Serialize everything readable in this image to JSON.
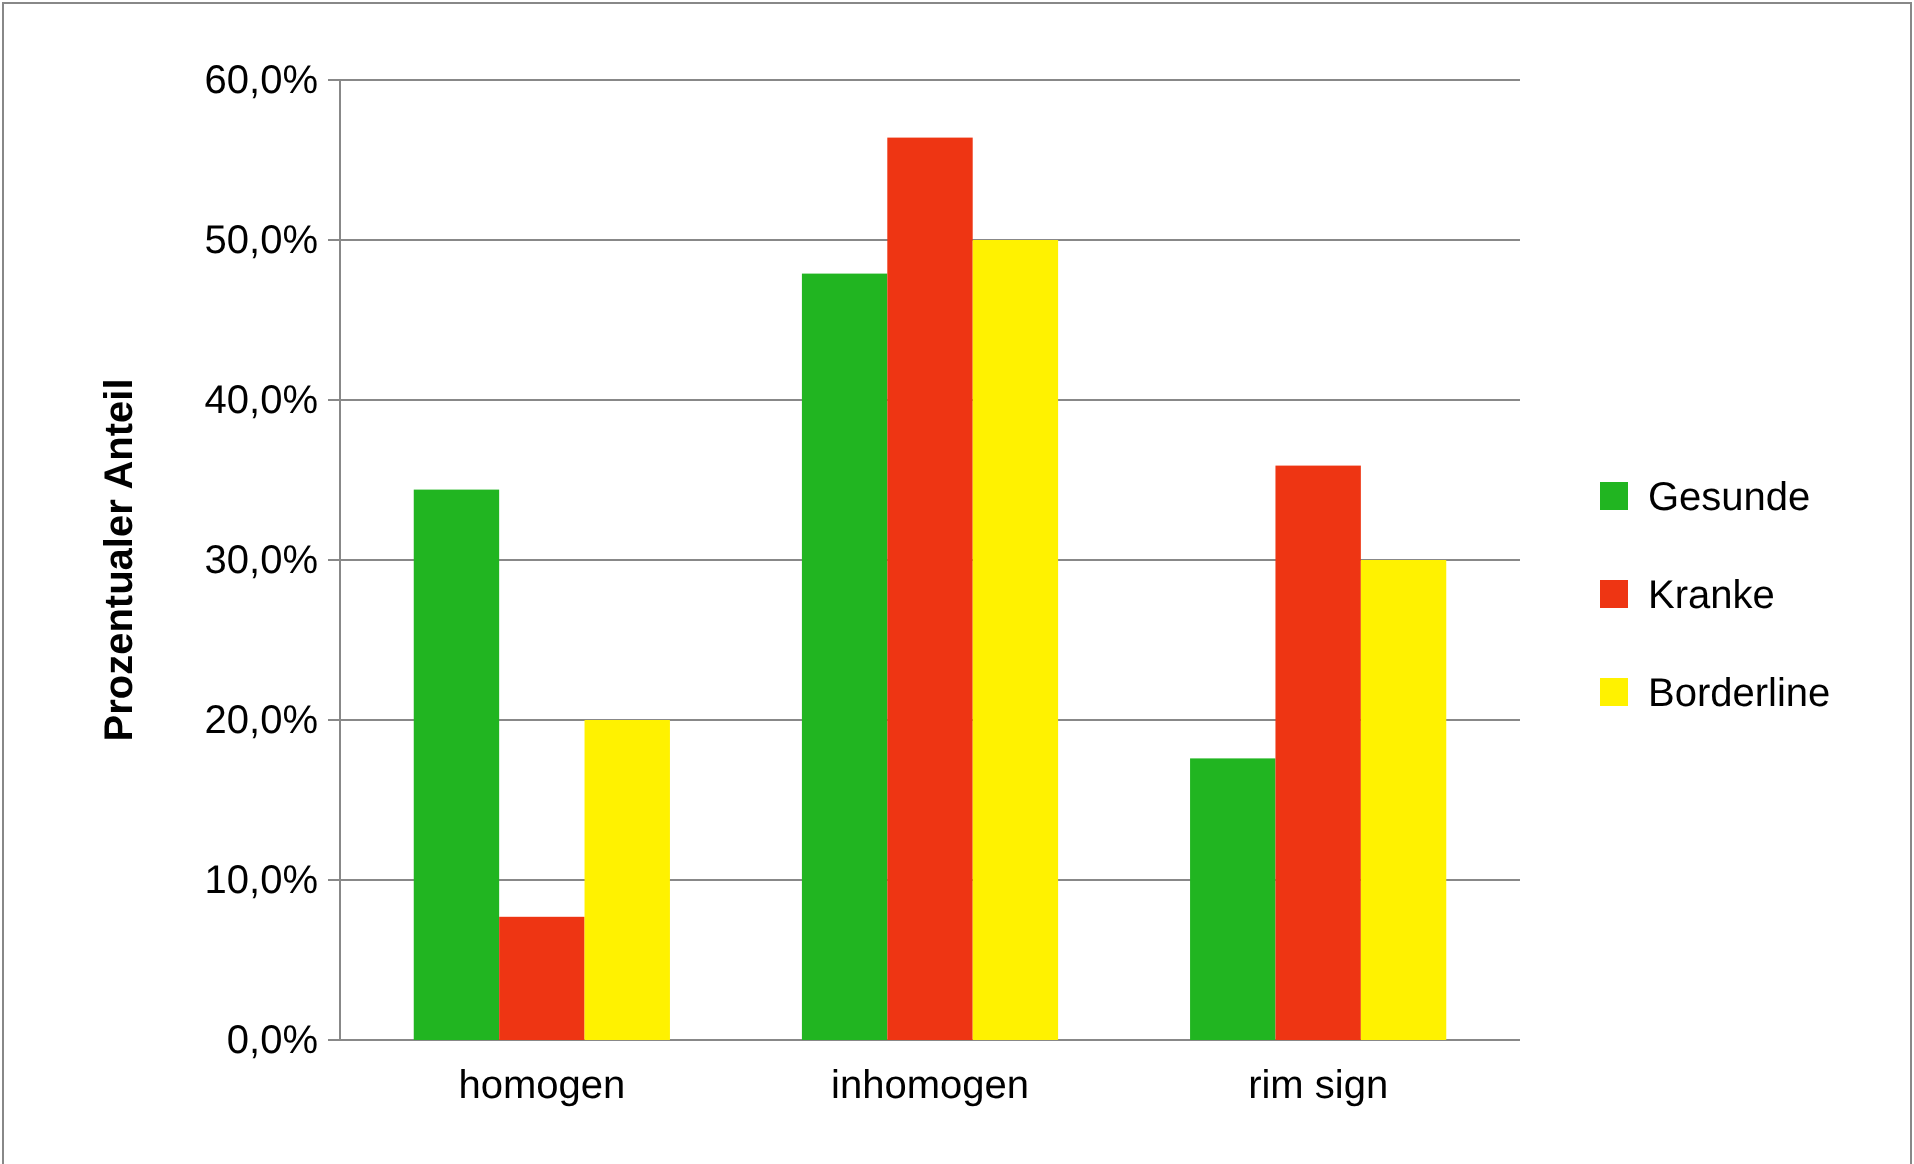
{
  "chart_data": {
    "type": "bar",
    "ylabel": "Prozentualer Anteil",
    "categories": [
      "homogen",
      "inhomogen",
      "rim sign"
    ],
    "series": [
      {
        "name": "Gesunde",
        "color": "#21b521",
        "values": [
          34.4,
          47.9,
          17.6
        ]
      },
      {
        "name": "Kranke",
        "color": "#ee3513",
        "values": [
          7.7,
          56.4,
          35.9
        ]
      },
      {
        "name": "Borderline",
        "color": "#fff200",
        "values": [
          20,
          50,
          30
        ]
      }
    ],
    "ylim": [
      0,
      60
    ],
    "yticks": [
      {
        "value": 0,
        "label": "0,0%"
      },
      {
        "value": 10,
        "label": "10,0%"
      },
      {
        "value": 20,
        "label": "20,0%"
      },
      {
        "value": 30,
        "label": "30,0%"
      },
      {
        "value": 40,
        "label": "40,0%"
      },
      {
        "value": 50,
        "label": "50,0%"
      },
      {
        "value": 60,
        "label": "60,0%"
      }
    ],
    "grid": "y",
    "legend": "right"
  }
}
